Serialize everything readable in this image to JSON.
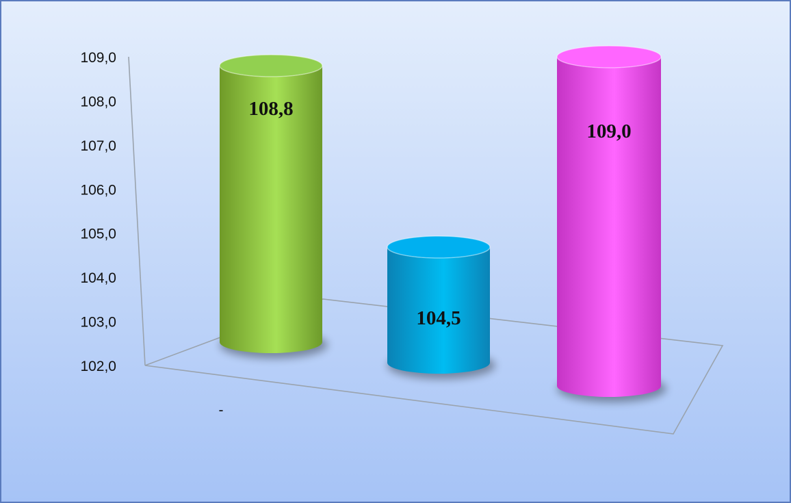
{
  "chart_data": {
    "type": "bar",
    "style": "3d-cylinder",
    "categories": [
      "-"
    ],
    "series": [
      {
        "values": [
          108.8
        ],
        "data_label": "108,8",
        "color": "#92d050"
      },
      {
        "values": [
          104.5
        ],
        "data_label": "104,5",
        "color": "#00b0f0"
      },
      {
        "values": [
          109.0
        ],
        "data_label": "109,0",
        "color": "#ff66ff"
      }
    ],
    "y_ticks": [
      "102,0",
      "103,0",
      "104,0",
      "105,0",
      "106,0",
      "107,0",
      "108,0",
      "109,0"
    ],
    "ylim": [
      102,
      109
    ],
    "title": "",
    "xlabel": "",
    "ylabel": "",
    "grid": false,
    "background": [
      "#e4eefc",
      "#a6c3f6"
    ],
    "border_color": "#5a7bbd"
  }
}
